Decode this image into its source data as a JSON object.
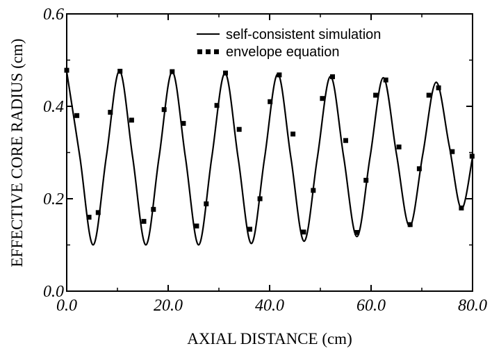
{
  "chart_data": {
    "type": "line",
    "xlabel": "AXIAL DISTANCE (cm)",
    "ylabel": "EFFECTIVE CORE RADIUS (cm)",
    "xlim": [
      0,
      80
    ],
    "ylim": [
      0,
      0.6
    ],
    "x_ticks": [
      "0.0",
      "20.0",
      "40.0",
      "60.0",
      "80.0"
    ],
    "y_ticks": [
      "0.0",
      "0.2",
      "0.4",
      "0.6"
    ],
    "grid": false,
    "legend_position": "top-right",
    "series": [
      {
        "name": "self-consistent simulation",
        "style": "solid line",
        "points": [
          [
            0.0,
            0.475
          ],
          [
            2.6,
            0.29
          ],
          [
            5.2,
            0.1
          ],
          [
            7.8,
            0.29
          ],
          [
            10.4,
            0.477
          ],
          [
            13.0,
            0.29
          ],
          [
            15.6,
            0.1
          ],
          [
            18.2,
            0.29
          ],
          [
            20.8,
            0.475
          ],
          [
            23.4,
            0.29
          ],
          [
            26.0,
            0.1
          ],
          [
            28.6,
            0.29
          ],
          [
            31.2,
            0.472
          ],
          [
            33.8,
            0.288
          ],
          [
            36.4,
            0.103
          ],
          [
            39.0,
            0.288
          ],
          [
            41.6,
            0.47
          ],
          [
            44.2,
            0.288
          ],
          [
            46.8,
            0.108
          ],
          [
            49.4,
            0.288
          ],
          [
            52.0,
            0.465
          ],
          [
            54.6,
            0.29
          ],
          [
            57.2,
            0.118
          ],
          [
            59.8,
            0.29
          ],
          [
            62.4,
            0.462
          ],
          [
            65.0,
            0.297
          ],
          [
            67.6,
            0.14
          ],
          [
            70.2,
            0.297
          ],
          [
            72.8,
            0.452
          ],
          [
            75.4,
            0.315
          ],
          [
            77.8,
            0.178
          ],
          [
            80.0,
            0.29
          ]
        ]
      },
      {
        "name": "envelope equation",
        "style": "square markers",
        "points": [
          [
            0.0,
            0.478
          ],
          [
            2.0,
            0.38
          ],
          [
            4.4,
            0.16
          ],
          [
            6.2,
            0.17
          ],
          [
            8.6,
            0.387
          ],
          [
            10.5,
            0.476
          ],
          [
            12.8,
            0.37
          ],
          [
            15.2,
            0.151
          ],
          [
            17.1,
            0.177
          ],
          [
            19.2,
            0.393
          ],
          [
            20.8,
            0.475
          ],
          [
            23.0,
            0.363
          ],
          [
            25.6,
            0.141
          ],
          [
            27.5,
            0.189
          ],
          [
            29.6,
            0.402
          ],
          [
            31.3,
            0.472
          ],
          [
            34.0,
            0.35
          ],
          [
            36.1,
            0.134
          ],
          [
            38.1,
            0.2
          ],
          [
            40.1,
            0.41
          ],
          [
            41.9,
            0.468
          ],
          [
            44.6,
            0.34
          ],
          [
            46.7,
            0.128
          ],
          [
            48.6,
            0.218
          ],
          [
            50.4,
            0.417
          ],
          [
            52.4,
            0.464
          ],
          [
            55.0,
            0.326
          ],
          [
            57.2,
            0.127
          ],
          [
            59.0,
            0.24
          ],
          [
            60.9,
            0.424
          ],
          [
            62.9,
            0.457
          ],
          [
            65.5,
            0.312
          ],
          [
            67.7,
            0.144
          ],
          [
            69.5,
            0.265
          ],
          [
            71.4,
            0.424
          ],
          [
            73.3,
            0.44
          ],
          [
            76.0,
            0.302
          ],
          [
            77.8,
            0.18
          ],
          [
            79.9,
            0.292
          ]
        ]
      }
    ]
  }
}
